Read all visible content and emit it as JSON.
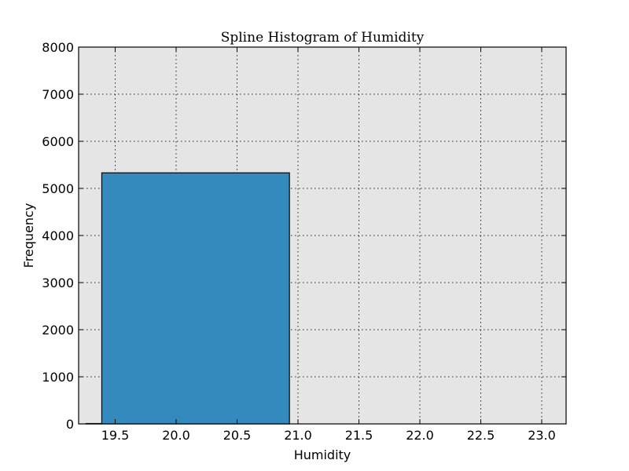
{
  "chart_data": {
    "type": "bar",
    "title": "Spline Histogram of Humidity",
    "xlabel": "Humidity",
    "ylabel": "Frequency",
    "xlim": [
      19.2,
      23.2
    ],
    "ylim": [
      0,
      8000
    ],
    "x_ticks": [
      19.5,
      20.0,
      20.5,
      21.0,
      21.5,
      22.0,
      22.5,
      23.0
    ],
    "x_tick_labels": [
      "19.5",
      "20.0",
      "20.5",
      "21.0",
      "21.5",
      "22.0",
      "22.5",
      "23.0"
    ],
    "y_ticks": [
      0,
      1000,
      2000,
      3000,
      4000,
      5000,
      6000,
      7000,
      8000
    ],
    "y_tick_labels": [
      "0",
      "1000",
      "2000",
      "3000",
      "4000",
      "5000",
      "6000",
      "7000",
      "8000"
    ],
    "grid": true,
    "bins": [
      {
        "x0": 19.26,
        "x1": 19.39,
        "value": 8
      },
      {
        "x0": 19.39,
        "x1": 20.93,
        "value": 5330
      }
    ],
    "colors": {
      "bar": "#348abd",
      "plot_background": "#e5e5e5",
      "edge": "#000000"
    }
  }
}
